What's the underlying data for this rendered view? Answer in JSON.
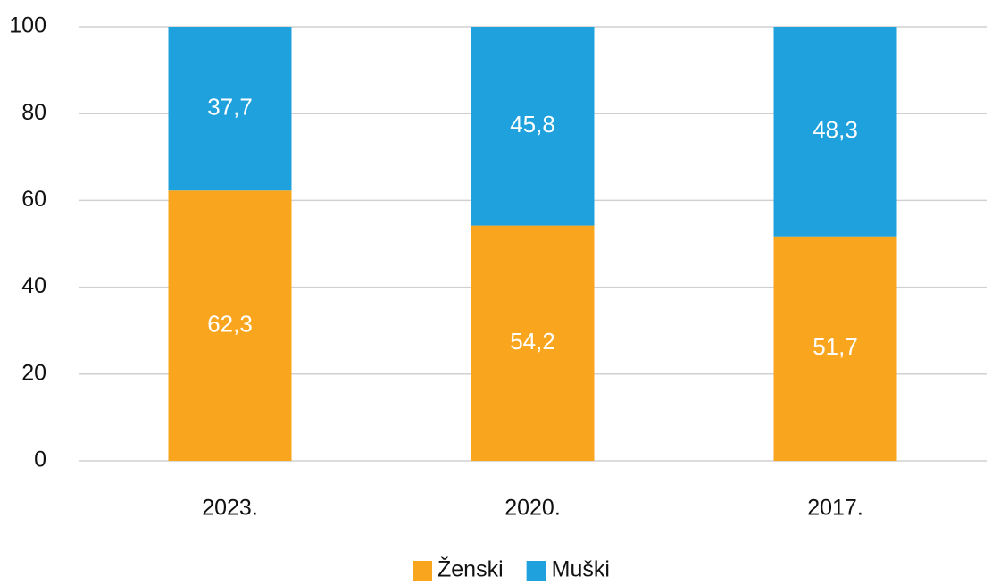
{
  "chart_data": {
    "type": "bar",
    "stacked": true,
    "categories": [
      "2023.",
      "2020.",
      "2017."
    ],
    "series": [
      {
        "name": "Ženski",
        "color": "#F9A61E",
        "values": [
          62.3,
          54.2,
          51.7
        ],
        "value_labels": [
          "62,3",
          "54,2",
          "51,7"
        ]
      },
      {
        "name": "Muški",
        "color": "#1EA1DC",
        "values": [
          37.7,
          45.8,
          48.3
        ],
        "value_labels": [
          "37,7",
          "45,8",
          "48,3"
        ]
      }
    ],
    "ylim": [
      0,
      100
    ],
    "yticks": [
      0,
      20,
      40,
      60,
      80,
      100
    ],
    "grid": true,
    "legend": "bottom"
  }
}
